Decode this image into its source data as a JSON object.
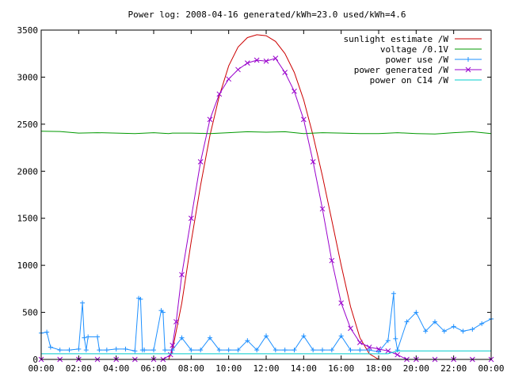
{
  "chart_data": {
    "type": "line",
    "title": "Power log: 2008-04-16 generated/kWh=23.0 used/kWh=4.6",
    "xlabel": "",
    "ylabel": "",
    "xlim": [
      0,
      24
    ],
    "ylim": [
      0,
      3500
    ],
    "x_ticks": [
      0,
      2,
      4,
      6,
      8,
      10,
      12,
      14,
      16,
      18,
      20,
      22,
      24
    ],
    "x_tick_labels": [
      "00:00",
      "02:00",
      "04:00",
      "06:00",
      "08:00",
      "10:00",
      "12:00",
      "14:00",
      "16:00",
      "18:00",
      "20:00",
      "22:00",
      "00:00"
    ],
    "y_ticks": [
      0,
      500,
      1000,
      1500,
      2000,
      2500,
      3000,
      3500
    ],
    "y_tick_labels": [
      "0",
      "500",
      "1000",
      "1500",
      "2000",
      "2500",
      "3000",
      "3500"
    ],
    "grid": false,
    "legend_position": "top-right",
    "series": [
      {
        "name": "sunlight estimate /W",
        "color": "#cc0000",
        "marker": "none",
        "x": [
          6.8,
          7.0,
          7.5,
          8.0,
          8.5,
          9.0,
          9.5,
          10.0,
          10.5,
          11.0,
          11.5,
          12.0,
          12.5,
          13.0,
          13.5,
          14.0,
          14.5,
          15.0,
          15.5,
          16.0,
          16.5,
          17.0,
          17.5,
          18.0,
          18.5,
          19.0
        ],
        "y": [
          0,
          100,
          600,
          1250,
          1850,
          2380,
          2800,
          3120,
          3320,
          3420,
          3450,
          3440,
          3380,
          3250,
          3050,
          2760,
          2380,
          1950,
          1480,
          1000,
          560,
          230,
          60,
          0,
          0,
          0
        ]
      },
      {
        "name": "voltage /0.1V",
        "color": "#009900",
        "marker": "none",
        "x": [
          0,
          1,
          2,
          3,
          4,
          5,
          6,
          6.8,
          7,
          8,
          9,
          10,
          11,
          12,
          13,
          14,
          15,
          16,
          17,
          18,
          19,
          20,
          21,
          22,
          23,
          24
        ],
        "y": [
          2425,
          2422,
          2405,
          2410,
          2405,
          2400,
          2410,
          2400,
          2405,
          2405,
          2400,
          2410,
          2420,
          2415,
          2420,
          2400,
          2410,
          2405,
          2400,
          2400,
          2410,
          2400,
          2395,
          2410,
          2420,
          2400
        ]
      },
      {
        "name": "power use /W",
        "color": "#1e90ff",
        "marker": "plus",
        "x": [
          0,
          0.3,
          0.5,
          1,
          1.5,
          2,
          2.2,
          2.3,
          2.4,
          2.5,
          3,
          3.1,
          3.5,
          4,
          4.5,
          5,
          5.2,
          5.3,
          5.4,
          5.5,
          6,
          6.4,
          6.5,
          6.6,
          7,
          7.5,
          8,
          8.5,
          9,
          9.5,
          10,
          10.5,
          11,
          11.5,
          12,
          12.5,
          13,
          13.5,
          14,
          14.5,
          15,
          15.5,
          16,
          16.5,
          17,
          17.5,
          18,
          18.5,
          18.8,
          18.9,
          19,
          19.5,
          20,
          20.5,
          21,
          21.5,
          22,
          22.5,
          23,
          23.5,
          24
        ],
        "y": [
          280,
          290,
          130,
          100,
          100,
          110,
          600,
          230,
          100,
          240,
          240,
          100,
          100,
          110,
          110,
          90,
          650,
          640,
          100,
          100,
          100,
          520,
          500,
          100,
          100,
          230,
          100,
          100,
          230,
          100,
          100,
          100,
          200,
          100,
          250,
          100,
          100,
          100,
          250,
          100,
          100,
          100,
          250,
          100,
          100,
          100,
          80,
          200,
          700,
          220,
          100,
          400,
          500,
          300,
          400,
          300,
          350,
          300,
          320,
          380,
          430
        ]
      },
      {
        "name": "power generated /W",
        "color": "#9900cc",
        "marker": "cross",
        "x": [
          0,
          1,
          2,
          3,
          4,
          5,
          6,
          6.5,
          6.9,
          7.0,
          7.2,
          7.5,
          8.0,
          8.5,
          9.0,
          9.5,
          10.0,
          10.5,
          11.0,
          11.5,
          12.0,
          12.5,
          13.0,
          13.5,
          14.0,
          14.5,
          15.0,
          15.5,
          16.0,
          16.5,
          17.0,
          17.5,
          18.0,
          18.5,
          19.0,
          19.5,
          20,
          21,
          22,
          23,
          24
        ],
        "y": [
          0,
          0,
          0,
          0,
          0,
          0,
          0,
          0,
          50,
          150,
          400,
          900,
          1500,
          2100,
          2550,
          2820,
          2980,
          3080,
          3150,
          3180,
          3170,
          3200,
          3050,
          2850,
          2550,
          2100,
          1600,
          1050,
          600,
          330,
          180,
          130,
          110,
          90,
          50,
          0,
          0,
          0,
          0,
          0,
          0
        ]
      },
      {
        "name": "power on C14 /W",
        "color": "#00cccc",
        "marker": "none",
        "x": [
          0,
          1,
          2,
          3,
          4,
          5,
          6,
          7,
          8,
          9,
          10,
          11,
          12,
          13,
          14,
          15,
          16,
          17,
          18,
          18.5,
          19,
          20,
          21,
          22,
          23,
          24
        ],
        "y": [
          60,
          60,
          60,
          60,
          60,
          60,
          60,
          60,
          60,
          60,
          60,
          60,
          60,
          60,
          60,
          60,
          60,
          60,
          60,
          60,
          90,
          90,
          90,
          90,
          90,
          90
        ]
      }
    ]
  }
}
